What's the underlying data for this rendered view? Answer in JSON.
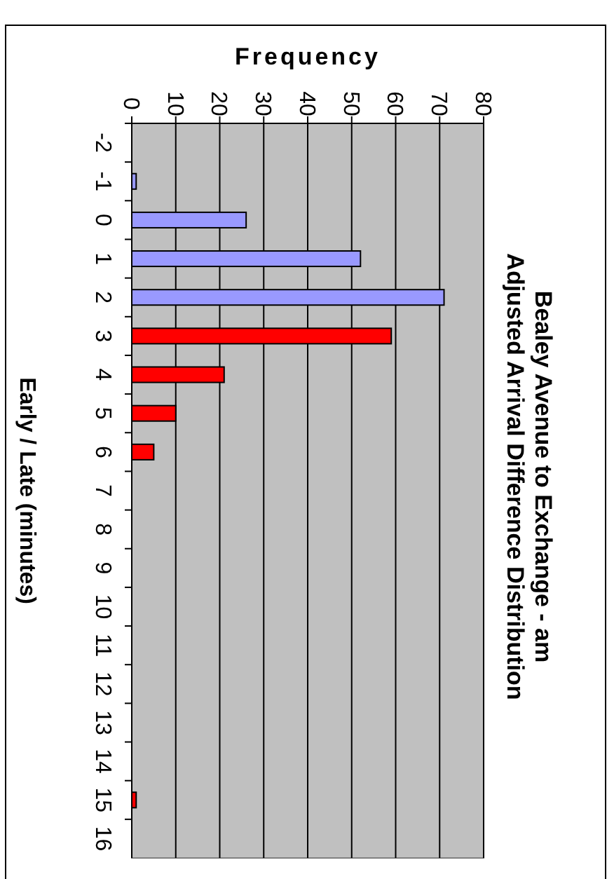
{
  "chart_data": {
    "type": "bar",
    "orientation": "horizontal",
    "title": "Bealey Avenue to Exchange - am",
    "subtitle": "Adjusted Arrival Difference Distribution",
    "ylabel": "Early / Late (minutes)",
    "xlabel": "Frequency",
    "categories": [
      "-2",
      "-1",
      "0",
      "1",
      "2",
      "3",
      "4",
      "5",
      "6",
      "7",
      "8",
      "9",
      "10",
      "11",
      "12",
      "13",
      "14",
      "15",
      "16"
    ],
    "values": [
      0,
      1,
      26,
      52,
      71,
      59,
      21,
      10,
      5,
      0,
      0,
      0,
      0,
      0,
      0,
      0,
      0,
      1,
      0
    ],
    "colors": [
      "#9999ff",
      "#9999ff",
      "#9999ff",
      "#9999ff",
      "#9999ff",
      "#ff0000",
      "#ff0000",
      "#ff0000",
      "#ff0000",
      "#ff0000",
      "#ff0000",
      "#ff0000",
      "#ff0000",
      "#ff0000",
      "#ff0000",
      "#ff0000",
      "#ff0000",
      "#ff0000",
      "#ff0000"
    ],
    "xlim": [
      0,
      80
    ],
    "xticks": [
      0,
      10,
      20,
      30,
      40,
      50,
      60,
      70,
      80
    ],
    "grid": "x"
  }
}
